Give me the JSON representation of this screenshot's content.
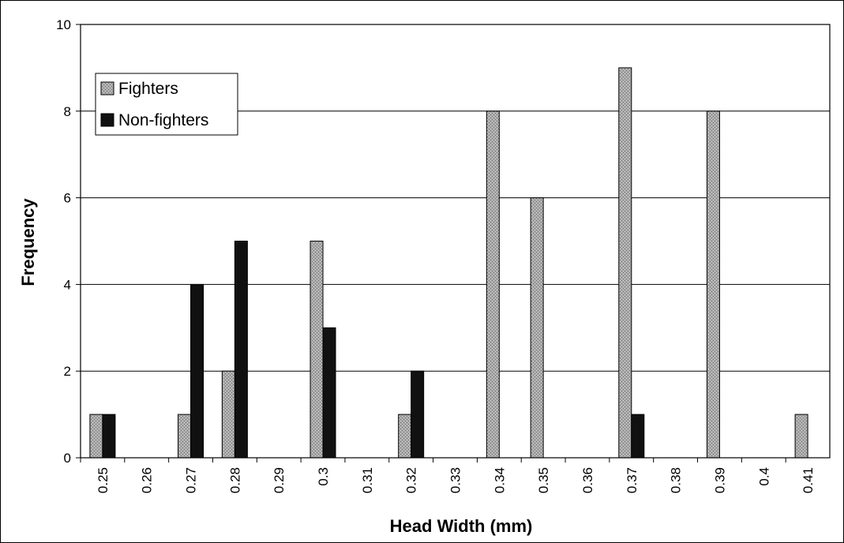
{
  "chart_data": {
    "type": "bar",
    "title": "",
    "xlabel": "Head Width (mm)",
    "ylabel": "Frequency",
    "ylim": [
      0,
      10
    ],
    "yticks": [
      0,
      2,
      4,
      6,
      8,
      10
    ],
    "grid": true,
    "legend_position": "top-left",
    "categories": [
      "0.25",
      "0.26",
      "0.27",
      "0.28",
      "0.29",
      "0.3",
      "0.31",
      "0.32",
      "0.33",
      "0.34",
      "0.35",
      "0.36",
      "0.37",
      "0.38",
      "0.39",
      "0.4",
      "0.41"
    ],
    "series": [
      {
        "name": "Fighters",
        "color": "#a6a6a6",
        "values": [
          1,
          0,
          1,
          2,
          0,
          5,
          0,
          1,
          0,
          8,
          6,
          0,
          9,
          0,
          8,
          0,
          1
        ]
      },
      {
        "name": "Non-fighters",
        "color": "#111111",
        "values": [
          1,
          0,
          4,
          5,
          0,
          3,
          0,
          2,
          0,
          0,
          0,
          0,
          1,
          0,
          0,
          0,
          0
        ]
      }
    ]
  }
}
